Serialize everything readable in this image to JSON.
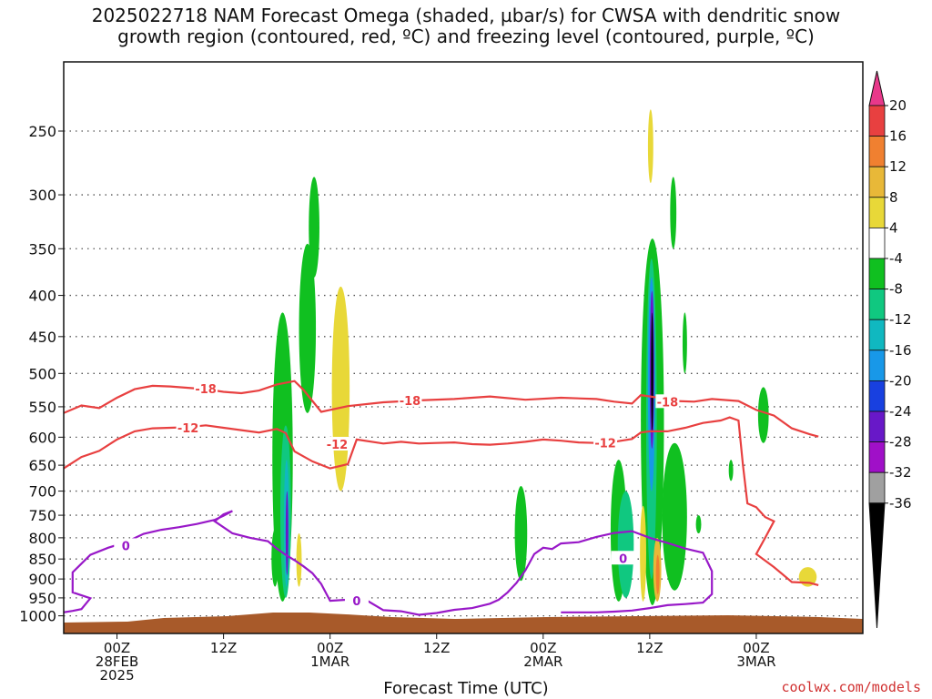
{
  "title": {
    "line1": "2025022718 NAM Forecast Omega (shaded, µbar/s) for CWSA with dendritic snow",
    "line2": "growth region (contoured, red, ºC) and freezing level (contoured, purple, ºC)"
  },
  "xlabel": "Forecast Time (UTC)",
  "credit": "coolwx.com/models",
  "chart_data": {
    "type": "heatmap",
    "title": "2025022718 NAM Forecast Omega (shaded, µbar/s) for CWSA with dendritic snow growth region (contoured, red, ºC) and freezing level (contoured, purple, ºC)",
    "xlabel": "Forecast Time (UTC)",
    "ylabel": "",
    "x_range_hours": [
      -6,
      84
    ],
    "y_levels": [
      250,
      300,
      350,
      400,
      450,
      500,
      550,
      600,
      650,
      700,
      750,
      800,
      850,
      900,
      950,
      1000
    ],
    "y_scale": "log",
    "x_ticks": [
      {
        "h": 0,
        "line1": "00Z",
        "line2": "28FEB",
        "line3": "2025"
      },
      {
        "h": 12,
        "line1": "12Z",
        "line2": "",
        "line3": ""
      },
      {
        "h": 24,
        "line1": "00Z",
        "line2": "1MAR",
        "line3": ""
      },
      {
        "h": 36,
        "line1": "12Z",
        "line2": "",
        "line3": ""
      },
      {
        "h": 48,
        "line1": "00Z",
        "line2": "2MAR",
        "line3": ""
      },
      {
        "h": 60,
        "line1": "12Z",
        "line2": "",
        "line3": ""
      },
      {
        "h": 72,
        "line1": "00Z",
        "line2": "3MAR",
        "line3": ""
      }
    ],
    "colorbar": {
      "labels": [
        "20",
        "16",
        "12",
        "8",
        "4",
        "-4",
        "-8",
        "-12",
        "-16",
        "-20",
        "-24",
        "-28",
        "-32",
        "-36"
      ],
      "colors": [
        "#e8388a",
        "#e84040",
        "#f08030",
        "#e8b838",
        "#e8d838",
        "#ffffff",
        "#10c020",
        "#10c880",
        "#10b8c0",
        "#1898e8",
        "#1840e0",
        "#6818c8",
        "#a010c8",
        "#a0a0a0",
        "#000000"
      ]
    },
    "contours": [
      {
        "label": "-18",
        "color": "#e84040",
        "points": [
          [
            -6,
            560
          ],
          [
            -4,
            548
          ],
          [
            -2,
            552
          ],
          [
            0,
            536
          ],
          [
            2,
            523
          ],
          [
            4,
            518
          ],
          [
            6,
            519
          ],
          [
            8,
            521
          ],
          [
            10,
            523
          ],
          [
            12,
            527
          ],
          [
            14,
            529
          ],
          [
            16,
            525
          ],
          [
            18,
            516
          ],
          [
            20,
            511
          ],
          [
            21,
            524
          ],
          [
            23,
            558
          ],
          [
            26,
            549
          ],
          [
            30,
            543
          ],
          [
            34,
            540
          ],
          [
            38,
            538
          ],
          [
            42,
            534
          ],
          [
            46,
            539
          ],
          [
            50,
            536
          ],
          [
            54,
            538
          ],
          [
            56,
            542
          ],
          [
            58,
            545
          ],
          [
            59,
            532
          ],
          [
            61,
            536
          ],
          [
            63,
            541
          ],
          [
            65,
            542
          ],
          [
            67,
            538
          ],
          [
            70,
            541
          ],
          [
            72,
            555
          ],
          [
            74,
            564
          ],
          [
            76,
            585
          ],
          [
            78,
            595
          ],
          [
            79,
            599
          ]
        ]
      },
      {
        "label": "-12",
        "color": "#e84040",
        "points": [
          [
            -6,
            656
          ],
          [
            -4,
            635
          ],
          [
            -2,
            624
          ],
          [
            0,
            604
          ],
          [
            2,
            590
          ],
          [
            4,
            585
          ],
          [
            6,
            584
          ],
          [
            8,
            583
          ],
          [
            10,
            580
          ],
          [
            12,
            584
          ],
          [
            14,
            588
          ],
          [
            16,
            592
          ],
          [
            18,
            586
          ],
          [
            19,
            593
          ],
          [
            20,
            625
          ],
          [
            22,
            643
          ],
          [
            24,
            656
          ],
          [
            26,
            648
          ],
          [
            27,
            604
          ],
          [
            30,
            611
          ],
          [
            32,
            608
          ],
          [
            34,
            611
          ],
          [
            36,
            610
          ],
          [
            38,
            609
          ],
          [
            40,
            612
          ],
          [
            42,
            613
          ],
          [
            44,
            611
          ],
          [
            46,
            608
          ],
          [
            48,
            604
          ],
          [
            50,
            606
          ],
          [
            52,
            609
          ],
          [
            54,
            610
          ],
          [
            56,
            608
          ],
          [
            58,
            603
          ],
          [
            59,
            592
          ],
          [
            60,
            590
          ],
          [
            62,
            590
          ],
          [
            64,
            584
          ],
          [
            66,
            576
          ],
          [
            68,
            572
          ],
          [
            69,
            567
          ],
          [
            70,
            572
          ],
          [
            70.5,
            650
          ],
          [
            71,
            725
          ],
          [
            72,
            733
          ],
          [
            73,
            754
          ],
          [
            74,
            763
          ],
          [
            73,
            800
          ],
          [
            72,
            838
          ],
          [
            74,
            870
          ],
          [
            76,
            908
          ],
          [
            78,
            910
          ],
          [
            79,
            916
          ]
        ]
      },
      {
        "label": "0",
        "color": "#9818c8",
        "points": [
          [
            -6,
            990
          ],
          [
            -5,
            986
          ],
          [
            -4,
            981
          ],
          [
            -3,
            951
          ],
          [
            -5,
            935
          ],
          [
            -5,
            883
          ],
          [
            -3,
            840
          ],
          [
            -1,
            823
          ],
          [
            1,
            810
          ],
          [
            3,
            791
          ],
          [
            5,
            782
          ],
          [
            7,
            776
          ],
          [
            9,
            769
          ],
          [
            11,
            760
          ],
          [
            12,
            751
          ],
          [
            13,
            741
          ],
          [
            12,
            748
          ],
          [
            11,
            763
          ],
          [
            13,
            790
          ],
          [
            15,
            800
          ],
          [
            17,
            808
          ],
          [
            18,
            825
          ],
          [
            19,
            840
          ],
          [
            20,
            853
          ],
          [
            21,
            868
          ],
          [
            22,
            885
          ],
          [
            23,
            913
          ],
          [
            24,
            958
          ],
          [
            26,
            955
          ],
          [
            28,
            955
          ],
          [
            30,
            984
          ],
          [
            32,
            987
          ],
          [
            34,
            997
          ],
          [
            36,
            992
          ],
          [
            38,
            983
          ],
          [
            40,
            978
          ],
          [
            42,
            966
          ],
          [
            43,
            955
          ],
          [
            44,
            935
          ],
          [
            45,
            910
          ],
          [
            46,
            878
          ],
          [
            47,
            838
          ],
          [
            48,
            823
          ],
          [
            49,
            826
          ],
          [
            50,
            813
          ],
          [
            52,
            810
          ],
          [
            54,
            798
          ],
          [
            56,
            789
          ],
          [
            58,
            785
          ],
          [
            60,
            800
          ],
          [
            62,
            812
          ],
          [
            64,
            825
          ],
          [
            66,
            835
          ],
          [
            67,
            880
          ],
          [
            67,
            940
          ],
          [
            66,
            963
          ],
          [
            64,
            967
          ],
          [
            62,
            970
          ],
          [
            60,
            978
          ],
          [
            58,
            985
          ],
          [
            56,
            988
          ],
          [
            54,
            990
          ],
          [
            52,
            990
          ],
          [
            50,
            990
          ]
        ]
      }
    ]
  }
}
